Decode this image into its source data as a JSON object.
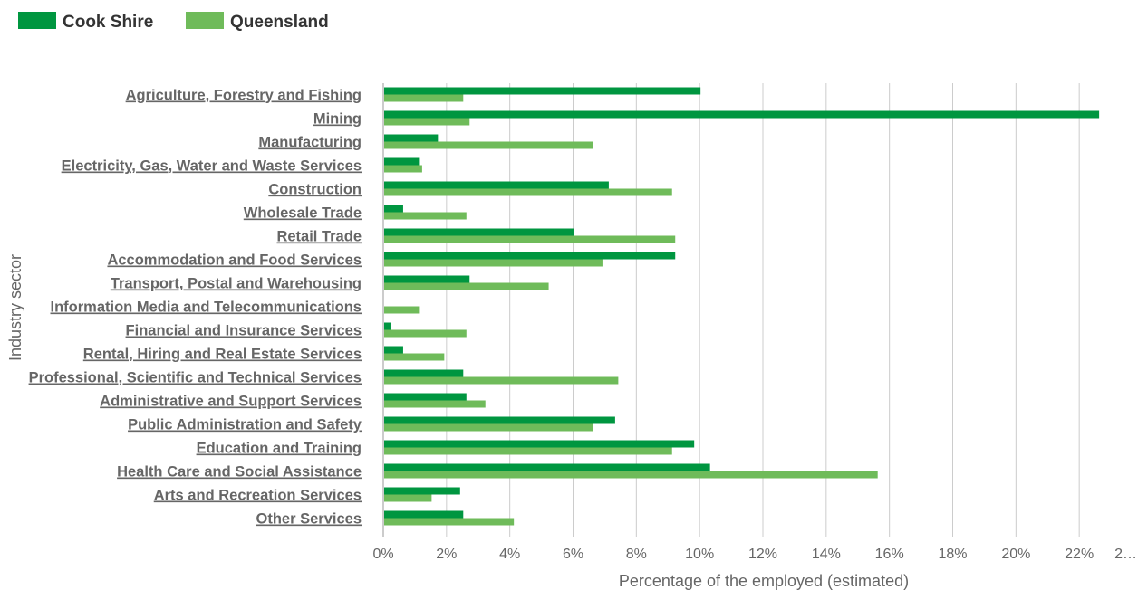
{
  "colors": {
    "cook_shire": "#009640",
    "queensland": "#6fbb5a",
    "grid": "#cccccc",
    "text": "#666666"
  },
  "legend": [
    {
      "label": "Cook Shire",
      "color": "#009640"
    },
    {
      "label": "Queensland",
      "color": "#6fbb5a"
    }
  ],
  "chart_data": {
    "type": "bar",
    "orientation": "horizontal",
    "categories": [
      "Agriculture, Forestry and Fishing",
      "Mining",
      "Manufacturing",
      "Electricity, Gas, Water and Waste Services",
      "Construction",
      "Wholesale Trade",
      "Retail Trade",
      "Accommodation and Food Services",
      "Transport, Postal and Warehousing",
      "Information Media and Telecommunications",
      "Financial and Insurance Services",
      "Rental, Hiring and Real Estate Services",
      "Professional, Scientific and Technical Services",
      "Administrative and Support Services",
      "Public Administration and Safety",
      "Education and Training",
      "Health Care and Social Assistance",
      "Arts and Recreation Services",
      "Other Services"
    ],
    "series": [
      {
        "name": "Cook Shire",
        "color": "#009640",
        "values": [
          10.0,
          22.6,
          1.7,
          1.1,
          7.1,
          0.6,
          6.0,
          9.2,
          2.7,
          0.0,
          0.2,
          0.6,
          2.5,
          2.6,
          7.3,
          9.8,
          10.3,
          2.4,
          2.5
        ]
      },
      {
        "name": "Queensland",
        "color": "#6fbb5a",
        "values": [
          2.5,
          2.7,
          6.6,
          1.2,
          9.1,
          2.6,
          9.2,
          6.9,
          5.2,
          1.1,
          2.6,
          1.9,
          7.4,
          3.2,
          6.6,
          9.1,
          15.6,
          1.5,
          4.1
        ]
      }
    ],
    "xlabel": "Percentage of the employed (estimated)",
    "ylabel": "Industry sector",
    "xlim": [
      0,
      24
    ],
    "ticks": [
      "0%",
      "2%",
      "4%",
      "6%",
      "8%",
      "10%",
      "12%",
      "14%",
      "16%",
      "18%",
      "20%",
      "22%",
      "2…"
    ],
    "grid": true,
    "legend_position": "top-left"
  }
}
